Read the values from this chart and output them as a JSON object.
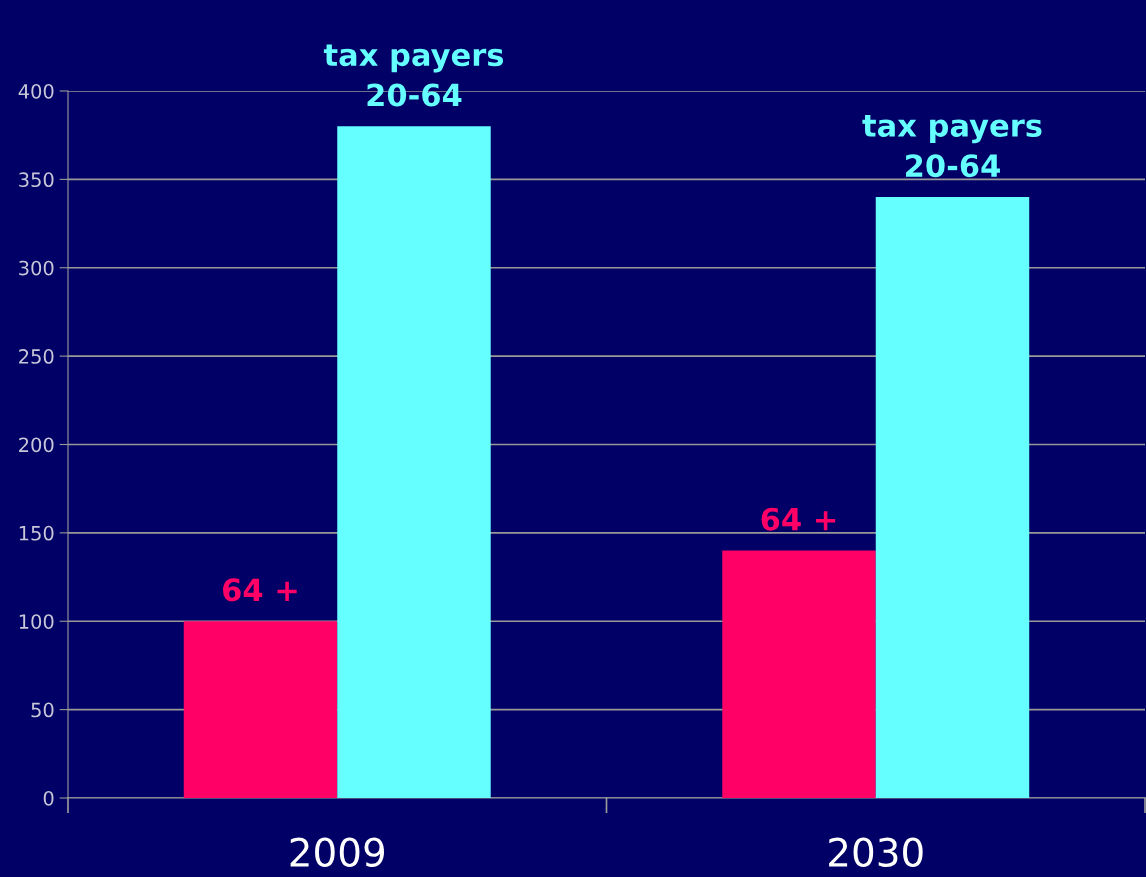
{
  "chart_data": {
    "type": "bar",
    "categories": [
      "2009",
      "2030"
    ],
    "series": [
      {
        "name": "64 +",
        "color": "#ff0066",
        "values": [
          100,
          140
        ]
      },
      {
        "name": "tax payers\n20-64",
        "color": "#66ffff",
        "values": [
          380,
          340
        ]
      }
    ],
    "ylim": [
      0,
      400
    ],
    "yticks": [
      0,
      50,
      100,
      150,
      200,
      250,
      300,
      350,
      400
    ],
    "grid": "y",
    "legend": false
  }
}
